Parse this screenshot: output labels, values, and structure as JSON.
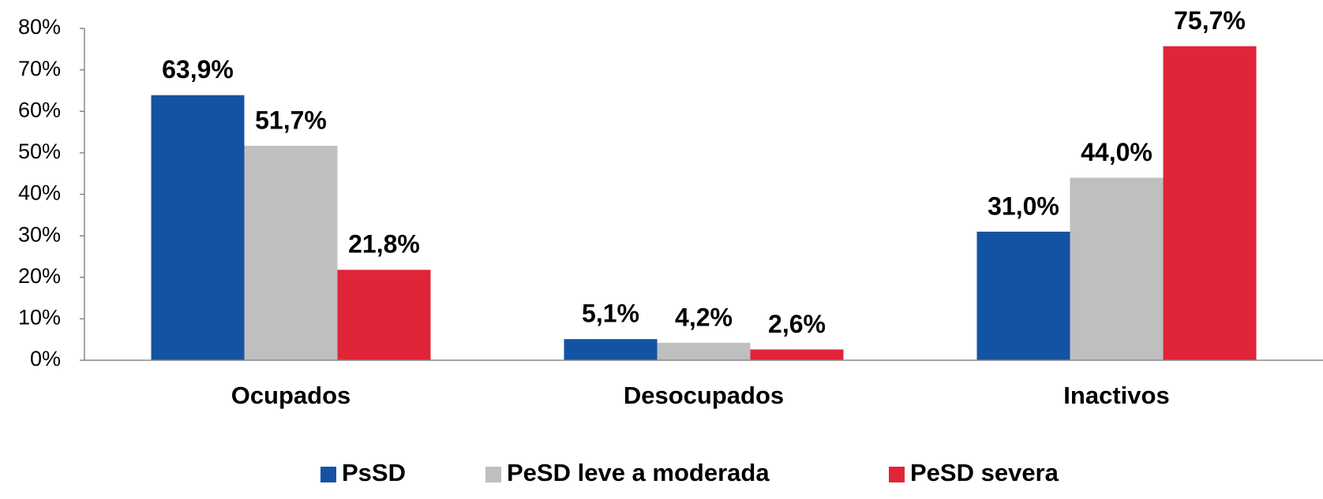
{
  "chart_data": {
    "type": "bar",
    "categories": [
      "Ocupados",
      "Desocupados",
      "Inactivos"
    ],
    "series": [
      {
        "name": "PsSD",
        "color": "#1353a4",
        "values": [
          63.9,
          5.1,
          31.0
        ],
        "value_labels": [
          "63,9%",
          "5,1%",
          "31,0%"
        ]
      },
      {
        "name": "PeSD leve a moderada",
        "color": "#bfbfbf",
        "values": [
          51.7,
          4.2,
          44.0
        ],
        "value_labels": [
          "51,7%",
          "4,2%",
          "44,0%"
        ]
      },
      {
        "name": "PeSD severa",
        "color": "#e02538",
        "values": [
          21.8,
          2.6,
          75.7
        ],
        "value_labels": [
          "21,8%",
          "2,6%",
          "75,7%"
        ]
      }
    ],
    "ylim": [
      0,
      80
    ],
    "yticks": [
      {
        "value": 0,
        "label": "0%"
      },
      {
        "value": 10,
        "label": "10%"
      },
      {
        "value": 20,
        "label": "20%"
      },
      {
        "value": 30,
        "label": "30%"
      },
      {
        "value": 40,
        "label": "40%"
      },
      {
        "value": 50,
        "label": "50%"
      },
      {
        "value": 60,
        "label": "60%"
      },
      {
        "value": 70,
        "label": "70%"
      },
      {
        "value": 80,
        "label": "80%"
      }
    ],
    "grid": false,
    "legend": "bottom"
  }
}
